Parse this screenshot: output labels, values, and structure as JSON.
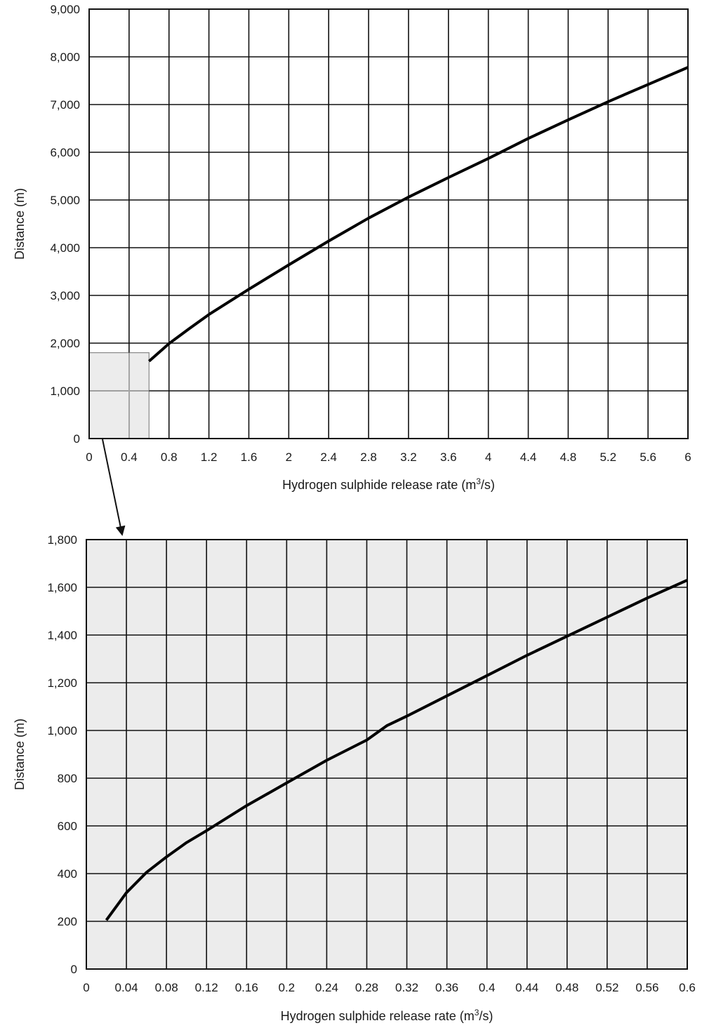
{
  "chart_data": [
    {
      "type": "line",
      "title": "",
      "xlabel": "Hydrogen sulphide release rate (m",
      "xlabel_sup": "3",
      "xlabel_end": "/s)",
      "ylabel": "Distance (m)",
      "xlim": [
        0,
        6
      ],
      "ylim": [
        0,
        9000
      ],
      "x_ticks": [
        "0",
        "0.4",
        "0.8",
        "1.2",
        "1.6",
        "2",
        "2.4",
        "2.8",
        "3.2",
        "3.6",
        "4",
        "4.4",
        "4.8",
        "5.2",
        "5.6",
        "6"
      ],
      "y_ticks": [
        "0",
        "1,000",
        "2,000",
        "3,000",
        "4,000",
        "5,000",
        "6,000",
        "7,000",
        "8,000",
        "9,000"
      ],
      "grid": true,
      "inset_region": {
        "x": [
          0,
          0.6
        ],
        "y": [
          0,
          1800
        ],
        "color": "#ececec"
      },
      "series": [
        {
          "x": [
            0.6,
            0.8,
            1.0,
            1.2,
            1.6,
            2.0,
            2.4,
            2.8,
            3.2,
            3.6,
            4.0,
            4.4,
            4.8,
            5.2,
            5.6,
            6.0
          ],
          "y": [
            1620,
            1990,
            2300,
            2600,
            3130,
            3640,
            4140,
            4620,
            5060,
            5470,
            5870,
            6290,
            6680,
            7060,
            7420,
            7780
          ]
        }
      ]
    },
    {
      "type": "line",
      "title": "",
      "xlabel": "Hydrogen sulphide release rate (m",
      "xlabel_sup": "3",
      "xlabel_end": "/s)",
      "ylabel": "Distance (m)",
      "xlim": [
        0,
        0.6
      ],
      "ylim": [
        0,
        1800
      ],
      "x_ticks": [
        "0",
        "0.04",
        "0.08",
        "0.12",
        "0.16",
        "0.2",
        "0.24",
        "0.28",
        "0.32",
        "0.36",
        "0.4",
        "0.44",
        "0.48",
        "0.52",
        "0.56",
        "0.6"
      ],
      "y_ticks": [
        "0",
        "200",
        "400",
        "600",
        "800",
        "1,000",
        "1,200",
        "1,400",
        "1,600",
        "1,800"
      ],
      "grid": true,
      "background": "#ececec",
      "series": [
        {
          "x": [
            0.02,
            0.04,
            0.06,
            0.08,
            0.1,
            0.12,
            0.16,
            0.2,
            0.24,
            0.28,
            0.3,
            0.32,
            0.36,
            0.4,
            0.44,
            0.48,
            0.52,
            0.56,
            0.6
          ],
          "y": [
            205,
            320,
            405,
            470,
            530,
            580,
            685,
            780,
            875,
            960,
            1020,
            1060,
            1145,
            1230,
            1315,
            1395,
            1475,
            1555,
            1630
          ]
        }
      ]
    }
  ]
}
